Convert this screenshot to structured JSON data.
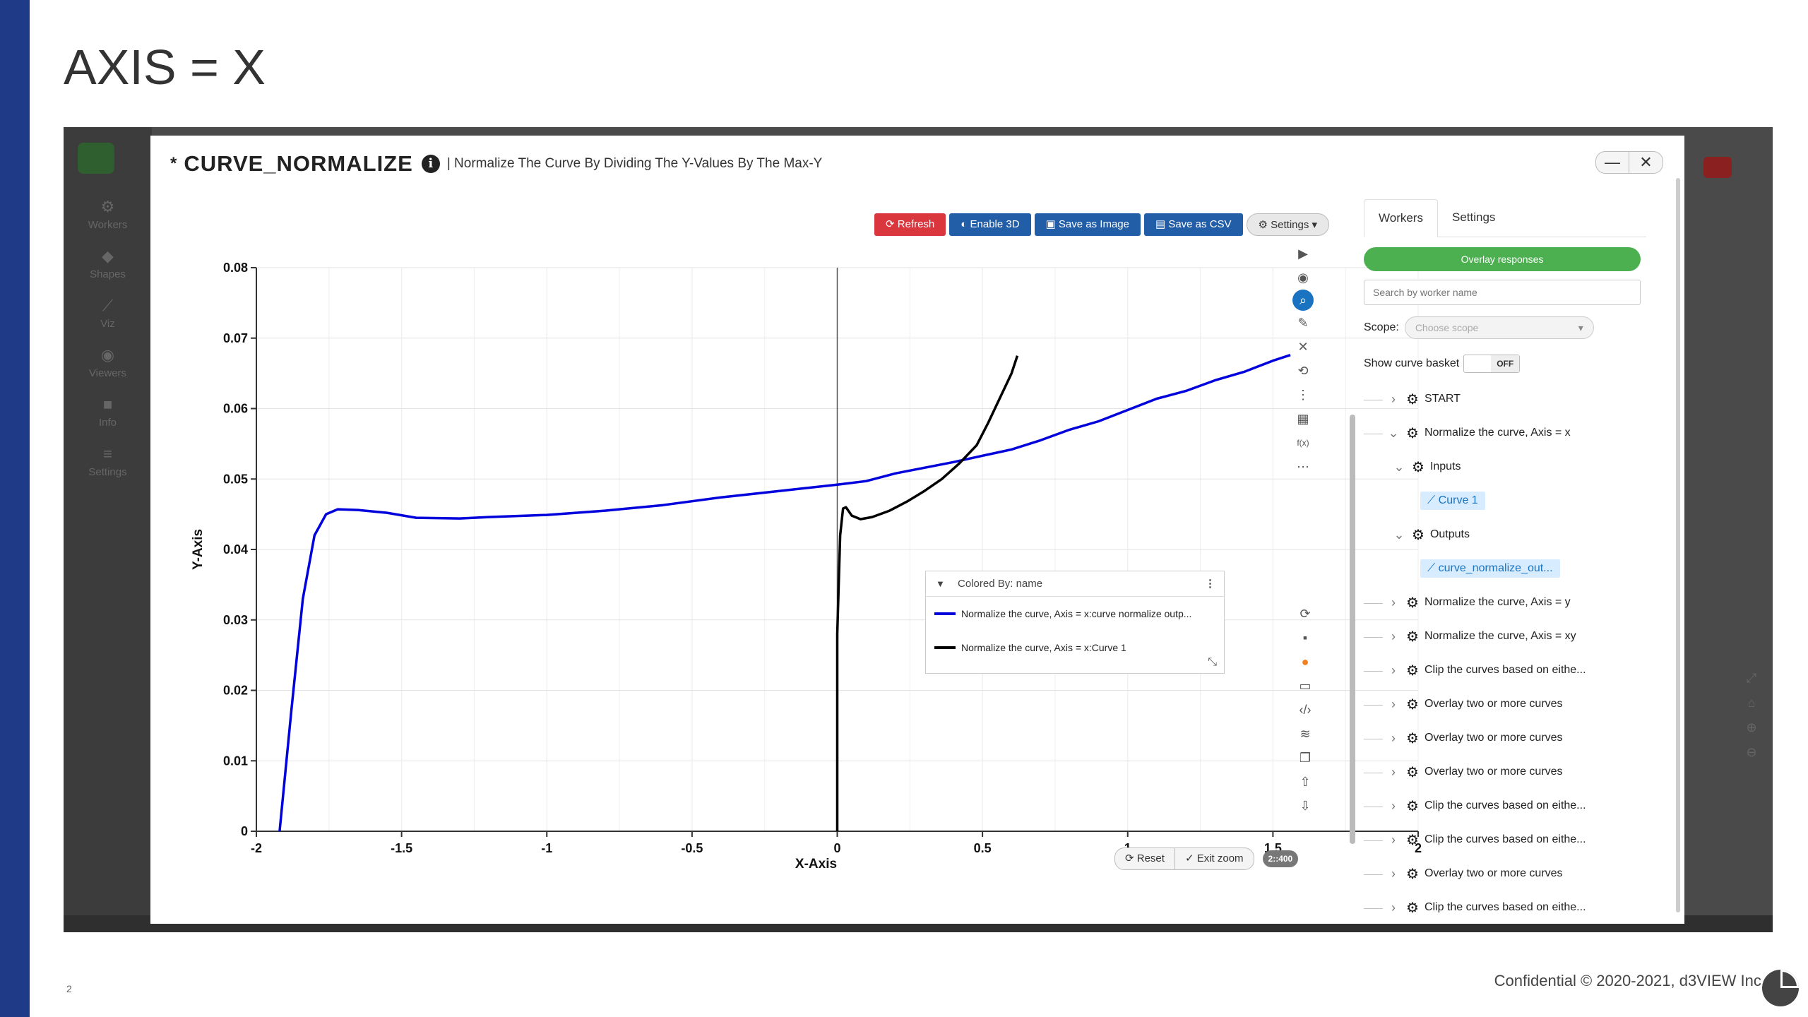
{
  "slide": {
    "title": "AXIS = X",
    "page_number": "2",
    "footer": "Confidential © 2020-2021, d3VIEW Inc."
  },
  "app": {
    "left_nav": [
      "Workers",
      "Shapes",
      "Viz",
      "Viewers",
      "Info",
      "Settings"
    ],
    "modal": {
      "star": "*",
      "title": "CURVE_NORMALIZE",
      "info_icon": "i",
      "description": "| Normalize The Curve By Dividing The Y-Values By The Max-Y",
      "minimize": "—",
      "close": "✕"
    },
    "toolbar": {
      "refresh": "Refresh",
      "enable3d": "Enable 3D",
      "save_image": "Save as Image",
      "save_csv": "Save as CSV",
      "settings": "Settings"
    },
    "zoom": {
      "reset": "Reset",
      "exit": "Exit zoom",
      "ratio": "2::400"
    },
    "legend": {
      "header": "Colored By: name",
      "items": [
        {
          "label": "Normalize the curve, Axis = x:curve normalize outp...",
          "color": "#0000dd"
        },
        {
          "label": "Normalize the curve, Axis = x:Curve 1",
          "color": "#000000"
        }
      ]
    },
    "panel": {
      "tabs": [
        "Workers",
        "Settings"
      ],
      "overlay_button": "Overlay responses",
      "search_placeholder": "Search by worker name",
      "scope_label": "Scope:",
      "scope_placeholder": "Choose scope",
      "basket_label": "Show curve basket",
      "basket_toggle": "OFF",
      "tree": [
        {
          "label": "START"
        },
        {
          "label": "Normalize the curve, Axis = x"
        },
        {
          "label": "Inputs"
        },
        {
          "label": "Curve 1"
        },
        {
          "label": "Outputs"
        },
        {
          "label": "curve_normalize_out..."
        },
        {
          "label": "Normalize the curve, Axis = y"
        },
        {
          "label": "Normalize the curve, Axis = xy"
        },
        {
          "label": "Clip the curves based on eithe..."
        },
        {
          "label": "Overlay two or more curves"
        },
        {
          "label": "Overlay two or more curves"
        },
        {
          "label": "Overlay two or more curves"
        },
        {
          "label": "Clip the curves based on eithe..."
        },
        {
          "label": "Clip the curves based on eithe..."
        },
        {
          "label": "Overlay two or more curves"
        },
        {
          "label": "Clip the curves based on eithe..."
        }
      ]
    }
  },
  "chart_data": {
    "type": "line",
    "xlabel": "X-Axis",
    "ylabel": "Y-Axis",
    "xlim": [
      -2,
      2
    ],
    "ylim": [
      0,
      0.08
    ],
    "xticks": [
      "-2",
      "-1.5",
      "-1",
      "-0.5",
      "0",
      "0.5",
      "1",
      "1.5",
      "2"
    ],
    "yticks": [
      "0",
      "0.01",
      "0.02",
      "0.03",
      "0.04",
      "0.05",
      "0.06",
      "0.07",
      "0.08"
    ],
    "grid": true,
    "series": [
      {
        "name": "Normalize the curve, Axis = x:curve normalize outp...",
        "color": "#0000dd",
        "x": [
          -1.92,
          -1.88,
          -1.84,
          -1.8,
          -1.76,
          -1.72,
          -1.65,
          -1.55,
          -1.45,
          -1.3,
          -1.2,
          -1.0,
          -0.8,
          -0.6,
          -0.4,
          -0.2,
          0.0,
          0.1,
          0.2,
          0.3,
          0.4,
          0.5,
          0.6,
          0.7,
          0.8,
          0.9,
          1.0,
          1.1,
          1.2,
          1.3,
          1.4,
          1.5,
          1.56
        ],
        "y": [
          0.0,
          0.017,
          0.033,
          0.042,
          0.045,
          0.0457,
          0.0456,
          0.0452,
          0.0445,
          0.0444,
          0.0446,
          0.0449,
          0.0455,
          0.0463,
          0.0474,
          0.0483,
          0.0492,
          0.0497,
          0.0508,
          0.0516,
          0.0524,
          0.0533,
          0.0542,
          0.0555,
          0.057,
          0.0582,
          0.0598,
          0.0614,
          0.0625,
          0.064,
          0.0652,
          0.0668,
          0.0676
        ]
      },
      {
        "name": "Normalize the curve, Axis = x:Curve 1",
        "color": "#000000",
        "x": [
          0.0,
          0.0,
          0.01,
          0.02,
          0.03,
          0.05,
          0.08,
          0.12,
          0.18,
          0.24,
          0.3,
          0.36,
          0.42,
          0.48,
          0.52,
          0.56,
          0.6,
          0.62
        ],
        "y": [
          0.0,
          0.028,
          0.042,
          0.0458,
          0.046,
          0.0448,
          0.0443,
          0.0446,
          0.0455,
          0.0468,
          0.0483,
          0.05,
          0.0522,
          0.0548,
          0.058,
          0.0615,
          0.065,
          0.0675
        ]
      }
    ]
  }
}
